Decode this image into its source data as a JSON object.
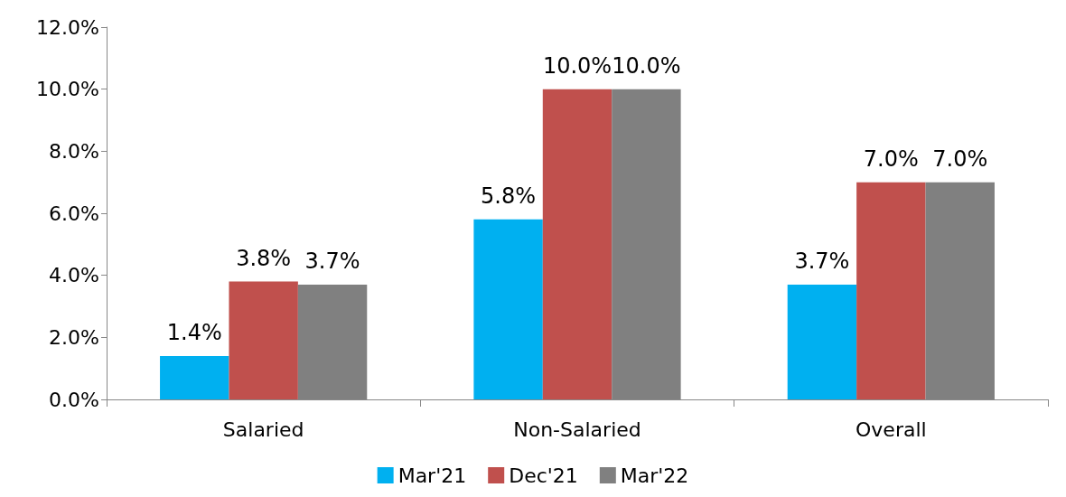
{
  "chart_data": {
    "type": "bar",
    "categories": [
      "Salaried",
      "Non-Salaried",
      "Overall"
    ],
    "series": [
      {
        "name": "Mar'21",
        "color": "#00b0f0",
        "values": [
          1.4,
          5.8,
          3.7
        ],
        "value_labels": [
          "1.4%",
          "5.8%",
          "3.7%"
        ]
      },
      {
        "name": "Dec'21",
        "color": "#c0504d",
        "values": [
          3.8,
          10.0,
          7.0
        ],
        "value_labels": [
          "3.8%",
          "10.0%",
          "7.0%"
        ]
      },
      {
        "name": "Mar'22",
        "color": "#808080",
        "values": [
          3.7,
          10.0,
          7.0
        ],
        "value_labels": [
          "3.7%",
          "10.0%",
          "7.0%"
        ]
      }
    ],
    "ylim": [
      0,
      12
    ],
    "yticks": [
      {
        "value": 0,
        "label": "0.0%"
      },
      {
        "value": 2,
        "label": "2.0%"
      },
      {
        "value": 4,
        "label": "4.0%"
      },
      {
        "value": 6,
        "label": "6.0%"
      },
      {
        "value": 8,
        "label": "8.0%"
      },
      {
        "value": 10,
        "label": "10.0%"
      },
      {
        "value": 12,
        "label": "12.0%"
      }
    ],
    "grid": false,
    "legend": "bottom"
  }
}
